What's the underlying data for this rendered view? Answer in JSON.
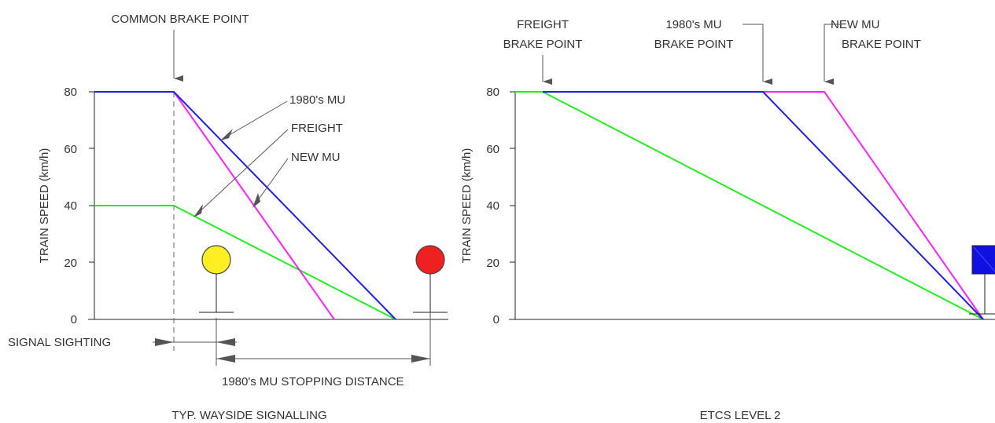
{
  "colors": {
    "mu1980": "#2020e0",
    "freight": "#22ee22",
    "new_mu": "#ff22ff",
    "signal_yellow": "#ffee22",
    "signal_red": "#ee2020",
    "etcs_marker": "#1010e0"
  },
  "left": {
    "caption": "TYP. WAYSIDE SIGNALLING",
    "ylabel": "TRAIN SPEED (km/h)",
    "ticks": [
      "0",
      "20",
      "40",
      "60",
      "80"
    ],
    "common_brake_point": "COMMON BRAKE POINT",
    "label_1980_mu": "1980's MU",
    "label_freight": "FREIGHT",
    "label_new_mu": "NEW MU",
    "signal_sighting": "SIGNAL SIGHTING",
    "stopping_distance": "1980's MU STOPPING DISTANCE"
  },
  "right": {
    "caption": "ETCS LEVEL 2",
    "ylabel": "TRAIN SPEED (km/h)",
    "ticks": [
      "0",
      "20",
      "40",
      "60",
      "80"
    ],
    "freight_bp_line1": "FREIGHT",
    "freight_bp_line2": "BRAKE POINT",
    "mu1980_bp_line1": "1980's MU",
    "mu1980_bp_line2": "BRAKE POINT",
    "newmu_bp_line1": "NEW MU",
    "newmu_bp_line2": "BRAKE POINT"
  },
  "chart_data": [
    {
      "type": "line",
      "title": "TYP. WAYSIDE SIGNALLING",
      "ylabel": "TRAIN SPEED (km/h)",
      "ylim": [
        0,
        80
      ],
      "yticks": [
        0,
        20,
        40,
        60,
        80
      ],
      "series": [
        {
          "name": "1980's MU",
          "speed_profile": [
            80,
            80,
            0
          ]
        },
        {
          "name": "FREIGHT",
          "speed_profile": [
            40,
            40,
            0
          ]
        },
        {
          "name": "NEW MU",
          "speed_profile": [
            80,
            80,
            0
          ]
        }
      ]
    },
    {
      "type": "line",
      "title": "ETCS LEVEL 2",
      "ylabel": "TRAIN SPEED (km/h)",
      "ylim": [
        0,
        80
      ],
      "yticks": [
        0,
        20,
        40,
        60,
        80
      ],
      "series": [
        {
          "name": "FREIGHT",
          "speed_profile": [
            80,
            80,
            0
          ]
        },
        {
          "name": "1980's MU",
          "speed_profile": [
            80,
            80,
            0
          ]
        },
        {
          "name": "NEW MU",
          "speed_profile": [
            80,
            80,
            0
          ]
        }
      ]
    }
  ]
}
